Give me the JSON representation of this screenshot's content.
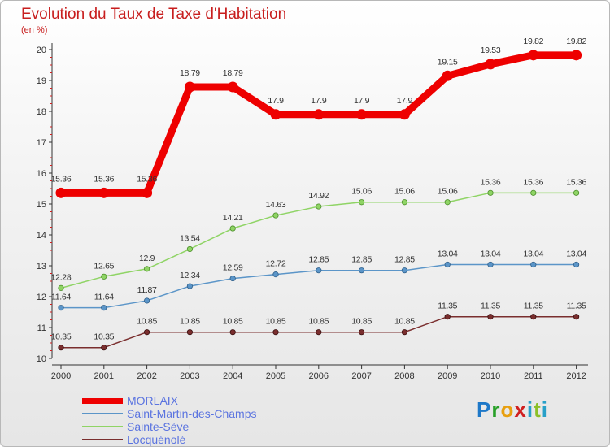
{
  "header": {
    "title": "Evolution du Taux de Taxe d'Habitation",
    "subtitle": "(en %)"
  },
  "logo": {
    "text": "Proxiti"
  },
  "chart_data": {
    "type": "line",
    "categories": [
      "2000",
      "2001",
      "2002",
      "2003",
      "2004",
      "2005",
      "2006",
      "2007",
      "2008",
      "2009",
      "2010",
      "2011",
      "2012"
    ],
    "ylim": [
      10,
      20
    ],
    "yticks": [
      10,
      11,
      12,
      13,
      14,
      15,
      16,
      17,
      18,
      19,
      20
    ],
    "grid": false,
    "legend_position": "bottom-left",
    "series": [
      {
        "name": "MORLAIX",
        "color": "#ee0000",
        "values": [
          15.36,
          15.36,
          15.36,
          18.79,
          18.79,
          17.9,
          17.9,
          17.9,
          17.9,
          19.15,
          19.53,
          19.82,
          19.82
        ],
        "labels": [
          "15.36",
          "15.36",
          "15.36",
          "18.79",
          "18.79",
          "17.9",
          "17.9",
          "17.9",
          "17.9",
          "19.15",
          "19.53",
          "19.82",
          "19.82"
        ]
      },
      {
        "name": "Saint-Martin-des-Champs",
        "color": "#5b95c8",
        "values": [
          11.64,
          11.64,
          11.87,
          12.34,
          12.59,
          12.72,
          12.85,
          12.85,
          12.85,
          13.04,
          13.04,
          13.04,
          13.04
        ],
        "labels": [
          "11.64",
          "11.64",
          "11.87",
          "12.34",
          "12.59",
          "12.72",
          "12.85",
          "12.85",
          "12.85",
          "13.04",
          "13.04",
          "13.04",
          "13.04"
        ]
      },
      {
        "name": "Sainte-Sève",
        "color": "#8fd465",
        "values": [
          12.28,
          12.65,
          12.9,
          13.54,
          14.21,
          14.63,
          14.92,
          15.06,
          15.06,
          15.06,
          15.36,
          15.36,
          15.36
        ],
        "labels": [
          "12.28",
          "12.65",
          "12.9",
          "13.54",
          "14.21",
          "14.63",
          "14.92",
          "15.06",
          "15.06",
          "15.06",
          "15.36",
          "15.36",
          "15.36"
        ]
      },
      {
        "name": "Locquénolé",
        "color": "#7a2e2e",
        "values": [
          10.35,
          10.35,
          10.85,
          10.85,
          10.85,
          10.85,
          10.85,
          10.85,
          10.85,
          11.35,
          11.35,
          11.35,
          11.35
        ],
        "labels": [
          "10.35",
          "10.35",
          "10.85",
          "10.85",
          "10.85",
          "10.85",
          "10.85",
          "10.85",
          "10.85",
          "11.35",
          "11.35",
          "11.35",
          "11.35"
        ]
      }
    ]
  }
}
